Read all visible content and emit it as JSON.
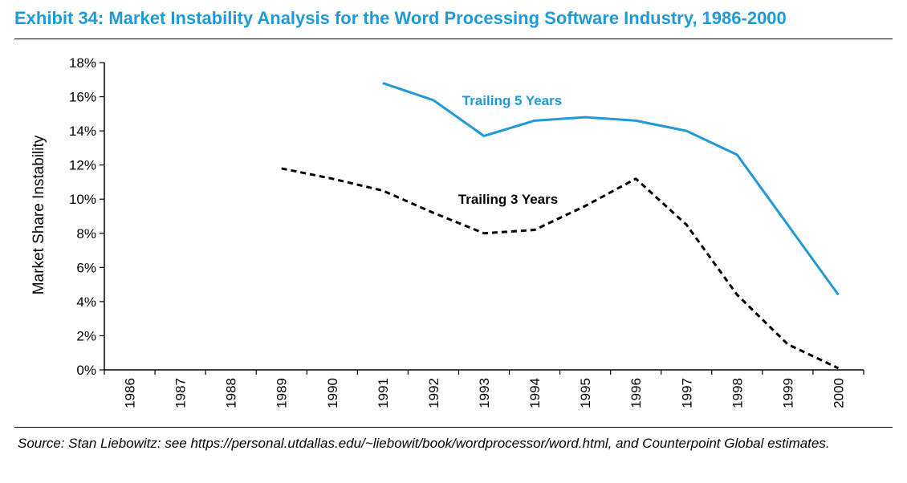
{
  "header": {
    "title": "Exhibit 34: Market Instability Analysis for the Word Processing Software Industry, 1986-2000"
  },
  "footer": {
    "source": "Source: Stan Liebowitz: see https://personal.utdallas.edu/~liebowit/book/wordprocessor/word.html, and Counterpoint Global estimates."
  },
  "colors": {
    "title": "#1f9ad6",
    "trailing5": "#1f9ad6",
    "trailing3": "#000000"
  },
  "chart_data": {
    "type": "line",
    "title": "Exhibit 34: Market Instability Analysis for the Word Processing Software Industry, 1986-2000",
    "xlabel": "",
    "ylabel": "Market Share Instability",
    "categories": [
      "1986",
      "1987",
      "1988",
      "1989",
      "1990",
      "1991",
      "1992",
      "1993",
      "1994",
      "1995",
      "1996",
      "1997",
      "1998",
      "1999",
      "2000"
    ],
    "ylim": [
      0,
      18
    ],
    "yticks": [
      "0%",
      "2%",
      "4%",
      "6%",
      "8%",
      "10%",
      "12%",
      "14%",
      "16%",
      "18%"
    ],
    "grid": false,
    "legend": "inline labels",
    "series": [
      {
        "name": "Trailing 5 Years",
        "style": "solid",
        "color": "#1f9ad6",
        "values": [
          null,
          null,
          null,
          null,
          null,
          16.8,
          15.8,
          13.7,
          14.6,
          14.8,
          14.6,
          14.0,
          12.6,
          8.5,
          4.4
        ]
      },
      {
        "name": "Trailing 3 Years",
        "style": "dashed",
        "color": "#000000",
        "values": [
          null,
          null,
          null,
          11.8,
          11.2,
          10.5,
          9.2,
          8.0,
          8.2,
          9.6,
          11.2,
          8.5,
          4.4,
          1.5,
          0.1
        ]
      }
    ]
  }
}
